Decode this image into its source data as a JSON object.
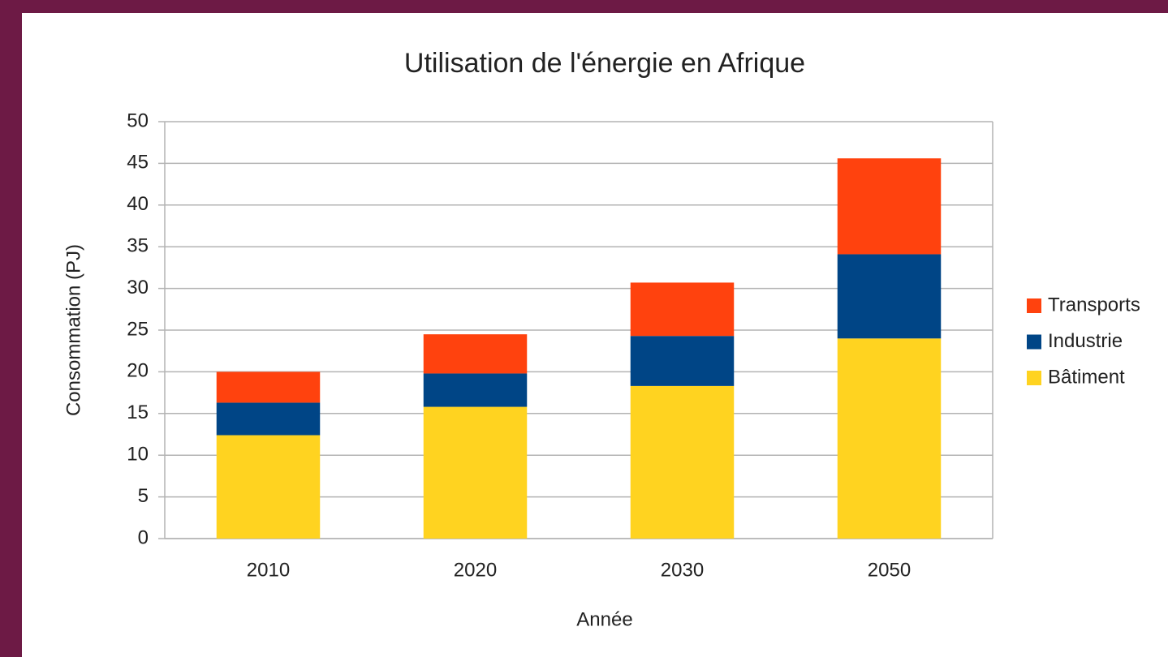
{
  "chart_data": {
    "type": "stacked_bar",
    "title": "Utilisation de l'énergie en Afrique",
    "x_label": "Année",
    "y_label": "Consommation (PJ)",
    "categories": [
      "2010",
      "2020",
      "2030",
      "2050"
    ],
    "series": [
      {
        "name": "Bâtiment",
        "color": "#ffd320",
        "values": [
          12.4,
          15.8,
          18.3,
          24.0
        ]
      },
      {
        "name": "Industrie",
        "color": "#004586",
        "values": [
          3.9,
          4.0,
          6.0,
          10.1
        ]
      },
      {
        "name": "Transports",
        "color": "#ff420e",
        "values": [
          3.7,
          4.7,
          6.4,
          11.5
        ]
      }
    ],
    "ylim": [
      0,
      50
    ],
    "yticks": [
      0,
      5,
      10,
      15,
      20,
      25,
      30,
      35,
      40,
      45,
      50
    ],
    "grid": true,
    "legend": "right"
  }
}
